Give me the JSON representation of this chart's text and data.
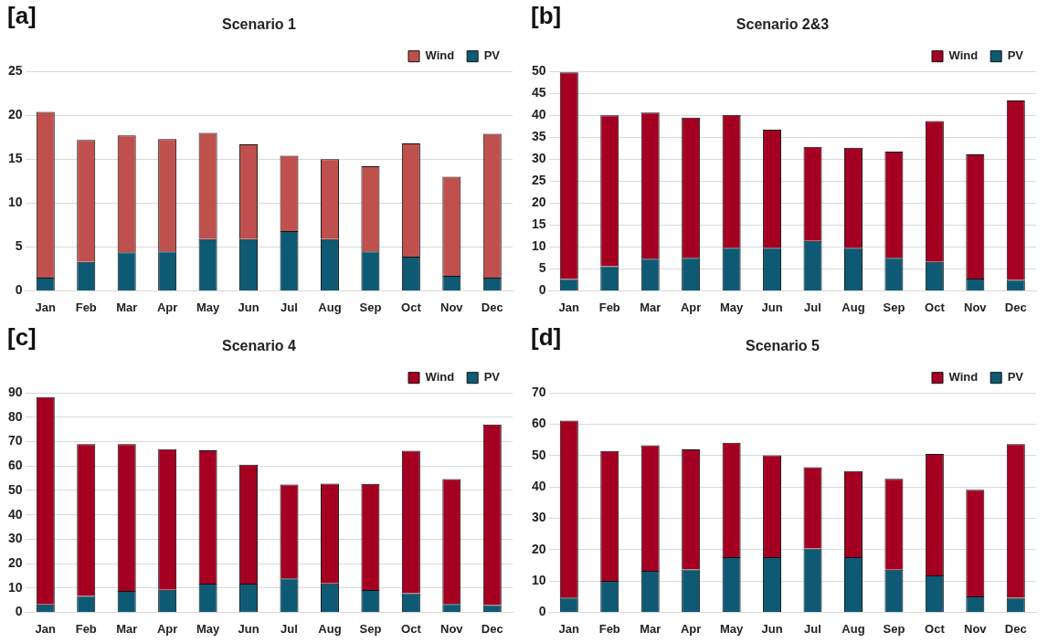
{
  "chart_data": [
    {
      "type": "bar",
      "title": "Scenario 1",
      "annotations": [
        "[a]"
      ],
      "stacked": true,
      "categories": [
        "Jan",
        "Feb",
        "Mar",
        "Apr",
        "May",
        "Jun",
        "Jul",
        "Aug",
        "Sep",
        "Oct",
        "Nov",
        "Dec"
      ],
      "ylim": [
        0,
        25
      ],
      "yticks": [
        0,
        5,
        10,
        15,
        20,
        25
      ],
      "grid": "y",
      "legend": "top",
      "series": [
        {
          "name": "PV",
          "color": "#0e5a74",
          "values": [
            1.5,
            3.3,
            4.4,
            4.5,
            5.9,
            5.9,
            6.8,
            5.9,
            4.5,
            3.9,
            1.7,
            1.5
          ]
        },
        {
          "name": "Wind",
          "color": "#c0504d",
          "values": [
            18.9,
            13.9,
            13.3,
            12.8,
            12.1,
            10.8,
            8.6,
            9.1,
            9.7,
            12.9,
            11.3,
            16.4
          ]
        }
      ]
    },
    {
      "type": "bar",
      "title": "Scenario 2&3",
      "annotations": [
        "[b]"
      ],
      "stacked": true,
      "categories": [
        "Jan",
        "Feb",
        "Mar",
        "Apr",
        "May",
        "Jun",
        "Jul",
        "Aug",
        "Sep",
        "Oct",
        "Nov",
        "Dec"
      ],
      "ylim": [
        0,
        50
      ],
      "yticks": [
        0,
        5,
        10,
        15,
        20,
        25,
        30,
        35,
        40,
        45,
        50
      ],
      "grid": "y",
      "legend": "top",
      "series": [
        {
          "name": "PV",
          "color": "#0e5a74",
          "values": [
            2.7,
            5.6,
            7.3,
            7.5,
            9.8,
            9.8,
            11.4,
            9.8,
            7.5,
            6.6,
            2.8,
            2.5
          ]
        },
        {
          "name": "Wind",
          "color": "#a50021",
          "values": [
            47.1,
            34.4,
            33.3,
            32.0,
            30.3,
            26.9,
            21.4,
            22.8,
            24.2,
            32.1,
            28.3,
            40.9
          ]
        }
      ]
    },
    {
      "type": "bar",
      "title": "Scenario 4",
      "annotations": [
        "[c]"
      ],
      "stacked": true,
      "categories": [
        "Jan",
        "Feb",
        "Mar",
        "Apr",
        "May",
        "Jun",
        "Jul",
        "Aug",
        "Sep",
        "Oct",
        "Nov",
        "Dec"
      ],
      "ylim": [
        0,
        90
      ],
      "yticks": [
        0,
        10,
        20,
        30,
        40,
        50,
        60,
        70,
        80,
        90
      ],
      "grid": "y",
      "legend": "top",
      "series": [
        {
          "name": "PV",
          "color": "#0e5a74",
          "values": [
            3.2,
            6.7,
            8.8,
            9.2,
            11.8,
            11.8,
            13.9,
            11.9,
            9.1,
            7.8,
            3.4,
            3.0
          ]
        },
        {
          "name": "Wind",
          "color": "#a50021",
          "values": [
            85.1,
            62.3,
            60.2,
            57.7,
            54.7,
            48.8,
            38.5,
            40.9,
            43.6,
            58.5,
            51.3,
            74.1
          ]
        }
      ]
    },
    {
      "type": "bar",
      "title": "Scenario 5",
      "annotations": [
        "[d]"
      ],
      "stacked": true,
      "categories": [
        "Jan",
        "Feb",
        "Mar",
        "Apr",
        "May",
        "Jun",
        "Jul",
        "Aug",
        "Sep",
        "Oct",
        "Nov",
        "Dec"
      ],
      "ylim": [
        0,
        70
      ],
      "yticks": [
        0,
        10,
        20,
        30,
        40,
        50,
        60,
        70
      ],
      "grid": "y",
      "legend": "top",
      "series": [
        {
          "name": "PV",
          "color": "#0e5a74",
          "values": [
            4.7,
            10.0,
            13.2,
            13.7,
            17.6,
            17.6,
            20.4,
            17.6,
            13.6,
            11.8,
            5.1,
            4.6
          ]
        },
        {
          "name": "Wind",
          "color": "#a50021",
          "values": [
            56.5,
            41.5,
            40.1,
            38.3,
            36.5,
            32.5,
            25.9,
            27.5,
            29.0,
            38.7,
            34.0,
            49.1
          ]
        }
      ]
    }
  ]
}
